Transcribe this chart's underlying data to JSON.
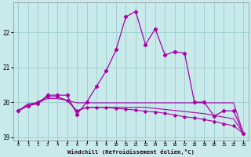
{
  "xlabel": "Windchill (Refroidissement éolien,°C)",
  "bg_color": "#c8eaea",
  "grid_color": "#a0d0d0",
  "line_color": "#aa00aa",
  "x": [
    0,
    1,
    2,
    3,
    4,
    5,
    6,
    7,
    8,
    9,
    10,
    11,
    12,
    13,
    14,
    15,
    16,
    17,
    18,
    19,
    20,
    21,
    22,
    23
  ],
  "line1": [
    19.75,
    19.9,
    19.95,
    20.2,
    20.2,
    20.2,
    19.65,
    20.0,
    20.45,
    20.9,
    21.5,
    22.45,
    22.6,
    21.65,
    22.1,
    21.35,
    21.45,
    21.4,
    20.0,
    20.0,
    19.6,
    19.75,
    19.75,
    19.1
  ],
  "line2": [
    19.75,
    19.9,
    20.0,
    20.15,
    20.15,
    20.05,
    19.75,
    19.85,
    19.85,
    19.85,
    19.82,
    19.8,
    19.77,
    19.74,
    19.72,
    19.68,
    19.63,
    19.58,
    19.55,
    19.5,
    19.45,
    19.38,
    19.32,
    19.1
  ],
  "line3": [
    19.75,
    19.9,
    20.0,
    20.15,
    20.15,
    20.05,
    19.75,
    19.85,
    19.85,
    19.85,
    19.85,
    19.85,
    19.85,
    19.85,
    19.82,
    19.79,
    19.76,
    19.73,
    19.7,
    19.67,
    19.62,
    19.57,
    19.52,
    19.1
  ],
  "line4": [
    19.75,
    19.95,
    19.98,
    20.1,
    20.1,
    20.05,
    19.98,
    19.98,
    19.98,
    19.98,
    19.98,
    19.98,
    19.98,
    19.98,
    19.98,
    19.98,
    19.98,
    19.98,
    19.98,
    19.98,
    19.98,
    19.98,
    19.98,
    19.1
  ],
  "ylim": [
    18.9,
    22.85
  ],
  "yticks": [
    19,
    20,
    21,
    22
  ],
  "xticks": [
    0,
    1,
    2,
    3,
    4,
    5,
    6,
    7,
    8,
    9,
    10,
    11,
    12,
    13,
    14,
    15,
    16,
    17,
    18,
    19,
    20,
    21,
    22,
    23
  ]
}
